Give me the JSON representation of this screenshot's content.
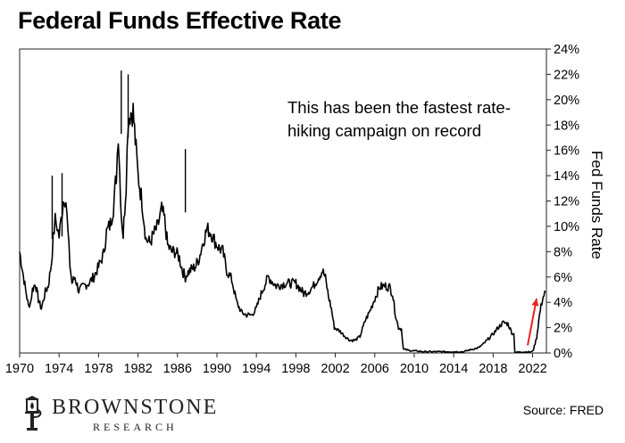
{
  "chart_data": {
    "type": "line",
    "title": "Federal Funds Effective Rate",
    "ylabel": "Fed Funds Rate",
    "xlabel": "",
    "xlim": [
      1970,
      2023.4
    ],
    "ylim": [
      0,
      24
    ],
    "y_axis_position": "right",
    "grid": false,
    "xticks": [
      "1970",
      "1974",
      "1978",
      "1982",
      "1986",
      "1990",
      "1994",
      "1998",
      "2002",
      "2006",
      "2010",
      "2014",
      "2018",
      "2022"
    ],
    "yticks": [
      "0%",
      "2%",
      "4%",
      "6%",
      "8%",
      "10%",
      "12%",
      "14%",
      "16%",
      "18%",
      "20%",
      "22%",
      "24%"
    ],
    "annotation": "This has been the fastest rate-hiking campaign on record",
    "annotation_arrow_color": "#e8231d",
    "line_color": "#000000",
    "series": [
      {
        "x": [
          1970.0,
          1970.3,
          1970.6,
          1970.9,
          1971.1,
          1971.3,
          1971.6,
          1971.9,
          1972.2,
          1972.6,
          1972.9,
          1973.2,
          1973.4,
          1973.6,
          1973.8,
          1974.0,
          1974.2,
          1974.5,
          1974.7,
          1974.9,
          1975.1,
          1975.3,
          1975.6,
          1976.0,
          1976.5,
          1977.0,
          1977.5,
          1978.0,
          1978.5,
          1978.8,
          1979.2,
          1979.5,
          1979.8,
          1980.0,
          1980.3,
          1980.5,
          1980.8,
          1981.0,
          1981.2,
          1981.5,
          1981.8,
          1982.0,
          1982.4,
          1982.8,
          1983.2,
          1983.6,
          1984.0,
          1984.4,
          1984.7,
          1985.0,
          1985.4,
          1985.8,
          1986.2,
          1986.5,
          1986.8,
          1987.0,
          1987.4,
          1987.8,
          1988.2,
          1988.6,
          1989.0,
          1989.4,
          1989.8,
          1990.2,
          1990.6,
          1991.0,
          1991.5,
          1992.0,
          1992.5,
          1993.0,
          1993.5,
          1994.0,
          1994.4,
          1994.8,
          1995.2,
          1996.0,
          1997.0,
          1998.0,
          1998.8,
          1999.3,
          1999.8,
          2000.3,
          2000.7,
          2001.0,
          2001.3,
          2001.6,
          2001.9,
          2002.5,
          2003.0,
          2003.5,
          2004.0,
          2004.5,
          2005.0,
          2005.5,
          2006.0,
          2006.5,
          2007.0,
          2007.5,
          2007.8,
          2008.1,
          2008.4,
          2008.7,
          2008.9,
          2009.5,
          2011.0,
          2013.0,
          2015.0,
          2015.9,
          2016.5,
          2017.0,
          2017.5,
          2018.0,
          2018.5,
          2019.0,
          2019.5,
          2019.9,
          2020.1,
          2020.2,
          2021.0,
          2021.9,
          2022.1,
          2022.4,
          2022.7,
          2023.0,
          2023.3
        ],
        "y": [
          8.0,
          6.5,
          5.0,
          3.7,
          4.0,
          5.0,
          5.5,
          4.2,
          3.5,
          4.8,
          5.3,
          7.0,
          9.0,
          10.5,
          10.0,
          9.2,
          10.5,
          12.5,
          12.0,
          9.5,
          7.0,
          5.5,
          6.0,
          4.9,
          5.3,
          5.5,
          6.0,
          6.8,
          7.8,
          9.5,
          10.2,
          11.5,
          14.0,
          17.5,
          11.0,
          9.3,
          13.5,
          18.5,
          19.0,
          19.1,
          16.0,
          14.0,
          12.0,
          9.0,
          8.7,
          9.4,
          10.0,
          11.3,
          10.5,
          8.5,
          8.0,
          8.0,
          7.5,
          6.5,
          6.0,
          6.3,
          6.6,
          6.8,
          7.5,
          8.8,
          9.8,
          9.5,
          8.8,
          8.3,
          8.0,
          6.5,
          5.8,
          4.0,
          3.2,
          3.0,
          3.0,
          3.5,
          4.5,
          5.3,
          6.0,
          5.3,
          5.5,
          5.5,
          4.7,
          4.9,
          5.3,
          6.0,
          6.5,
          5.9,
          4.5,
          3.5,
          2.0,
          1.7,
          1.3,
          1.0,
          1.0,
          1.3,
          2.5,
          3.3,
          4.3,
          5.2,
          5.3,
          5.2,
          4.7,
          3.0,
          2.0,
          1.9,
          0.3,
          0.2,
          0.1,
          0.1,
          0.1,
          0.3,
          0.4,
          0.7,
          1.1,
          1.5,
          2.0,
          2.4,
          2.3,
          1.6,
          1.5,
          0.05,
          0.08,
          0.08,
          0.3,
          1.2,
          3.0,
          4.3,
          4.8
        ]
      }
    ]
  },
  "branding": {
    "logo_main": "BROWNSTONE",
    "logo_sub": "RESEARCH"
  },
  "source": "Source: FRED"
}
